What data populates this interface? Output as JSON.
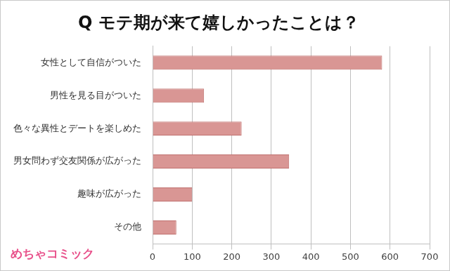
{
  "chart_data": {
    "type": "bar",
    "title": "Q モテ期が来て嬉しかったことは？",
    "categories": [
      "女性として自信がついた",
      "男性を見る目がついた",
      "色々な異性とデートを楽しめた",
      "男女問わず交友関係が広がった",
      "趣味が広がった",
      "その他"
    ],
    "values": [
      580,
      130,
      225,
      345,
      100,
      60
    ],
    "color": "#d99694",
    "orientation": "horizontal",
    "xlim": [
      0,
      700
    ],
    "xticks": [
      0,
      100,
      200,
      300,
      400,
      500,
      600,
      700
    ],
    "grid": true,
    "legend": false,
    "data_labels": false,
    "annotations": [
      "めちゃコミック"
    ]
  }
}
